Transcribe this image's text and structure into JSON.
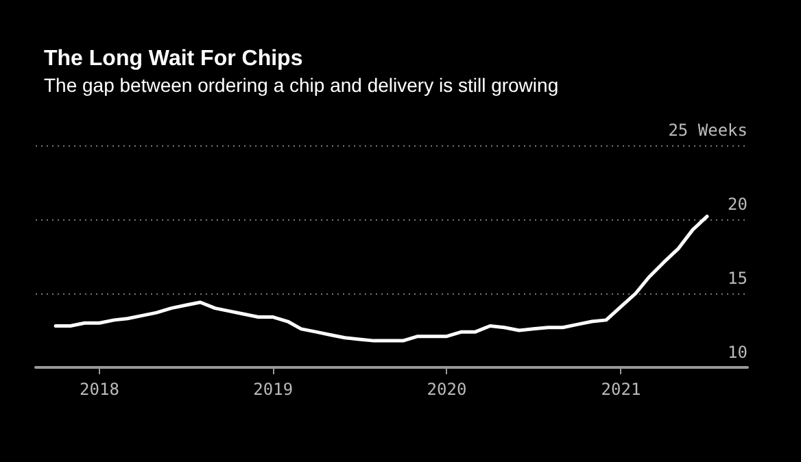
{
  "chart_data": {
    "type": "line",
    "title": "The Long Wait For Chips",
    "subtitle": "The gap between ordering a chip and delivery is still growing",
    "x": [
      "2017-10",
      "2017-11",
      "2017-12",
      "2018-01",
      "2018-02",
      "2018-03",
      "2018-04",
      "2018-05",
      "2018-06",
      "2018-07",
      "2018-08",
      "2018-09",
      "2018-10",
      "2018-11",
      "2018-12",
      "2019-01",
      "2019-02",
      "2019-03",
      "2019-04",
      "2019-05",
      "2019-06",
      "2019-07",
      "2019-08",
      "2019-09",
      "2019-10",
      "2019-11",
      "2019-12",
      "2020-01",
      "2020-02",
      "2020-03",
      "2020-04",
      "2020-05",
      "2020-06",
      "2020-07",
      "2020-08",
      "2020-09",
      "2020-10",
      "2020-11",
      "2020-12",
      "2021-01",
      "2021-02",
      "2021-03",
      "2021-04",
      "2021-05",
      "2021-06",
      "2021-07"
    ],
    "series": [
      {
        "color": "#ffffff",
        "values": [
          12.8,
          12.8,
          13.0,
          13.0,
          13.2,
          13.3,
          13.5,
          13.7,
          14.0,
          14.2,
          14.4,
          14.0,
          13.8,
          13.6,
          13.4,
          13.4,
          13.1,
          12.6,
          12.4,
          12.2,
          12.0,
          11.9,
          11.8,
          11.8,
          11.8,
          12.1,
          12.1,
          12.1,
          12.4,
          12.4,
          12.8,
          12.7,
          12.5,
          12.6,
          12.7,
          12.7,
          12.9,
          13.1,
          13.2,
          14.1,
          15.0,
          16.1,
          17.1,
          18.0,
          19.3,
          20.2
        ]
      }
    ],
    "xlim": [
      "2017-08-20",
      "2021-09-24"
    ],
    "xticks": [
      "2018",
      "2019",
      "2020",
      "2021"
    ],
    "ylim": [
      10,
      25
    ],
    "yticks": [
      10,
      15,
      20,
      {
        "value": 25,
        "label": "25 Weeks"
      }
    ],
    "grid": "y",
    "marker": "none",
    "line_style": "solid"
  }
}
